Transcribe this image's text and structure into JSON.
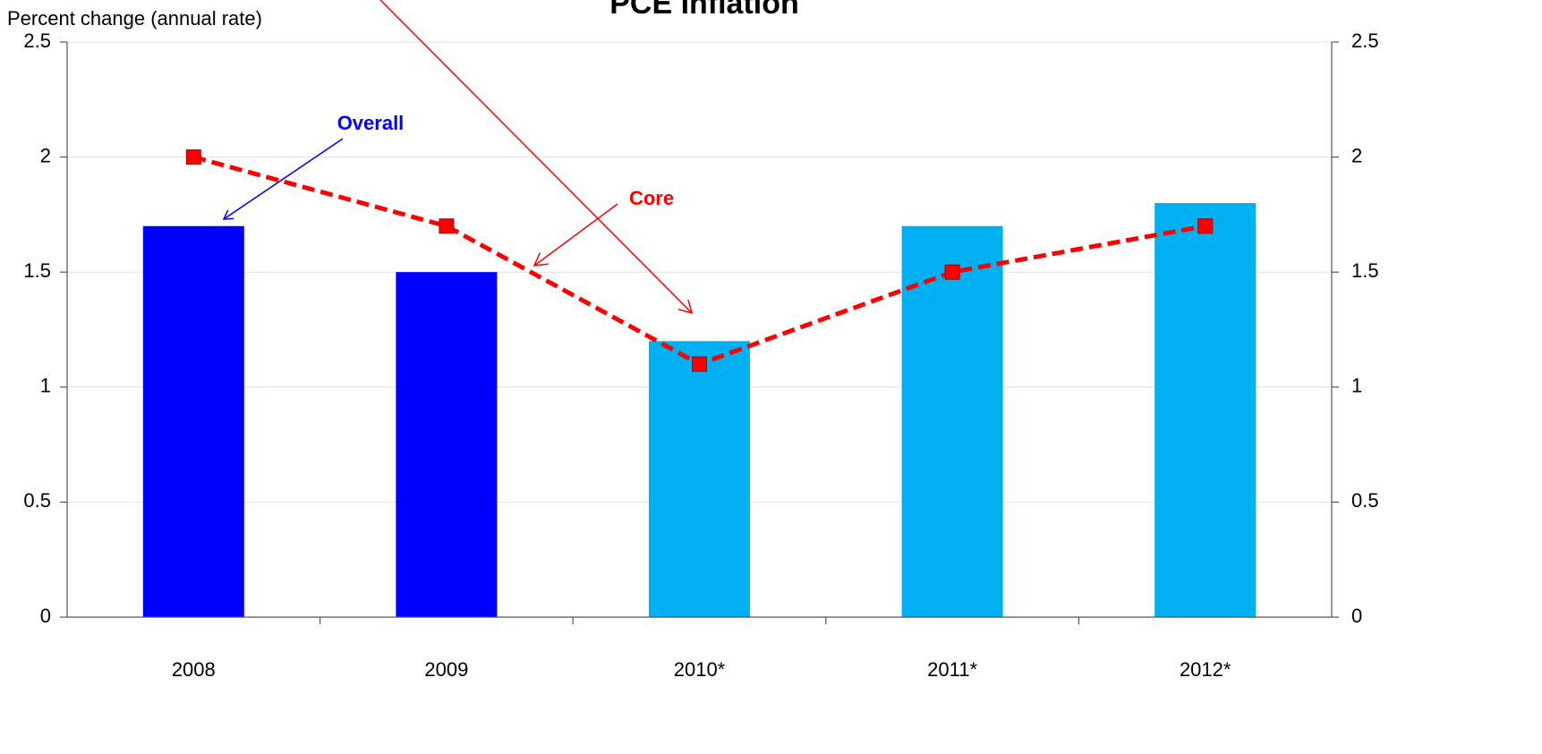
{
  "chart_data": {
    "type": "bar_line",
    "title": "PCE Inflation",
    "y_axis_label": "Percent change (annual rate)",
    "categories": [
      "2008",
      "2009",
      "2010*",
      "2011*",
      "2012*"
    ],
    "series": [
      {
        "name": "Overall",
        "type": "bar",
        "colors": [
          "#0000ff",
          "#0000ff",
          "#00b0f0",
          "#00b0f0",
          "#00b0f0"
        ],
        "color": "#0000ff",
        "values": [
          1.7,
          1.5,
          1.2,
          1.7,
          1.8
        ]
      },
      {
        "name": "Core",
        "type": "line",
        "color": "#ff0000",
        "values": [
          2.0,
          1.7,
          1.1,
          1.5,
          1.7
        ]
      }
    ],
    "ylim": [
      0,
      2.5
    ],
    "yticks": [
      0,
      0.5,
      1,
      1.5,
      2,
      2.5
    ],
    "y2lim": [
      0,
      2.5
    ],
    "y2ticks": [
      0,
      0.5,
      1,
      1.5,
      2,
      2.5
    ],
    "grid": true
  }
}
